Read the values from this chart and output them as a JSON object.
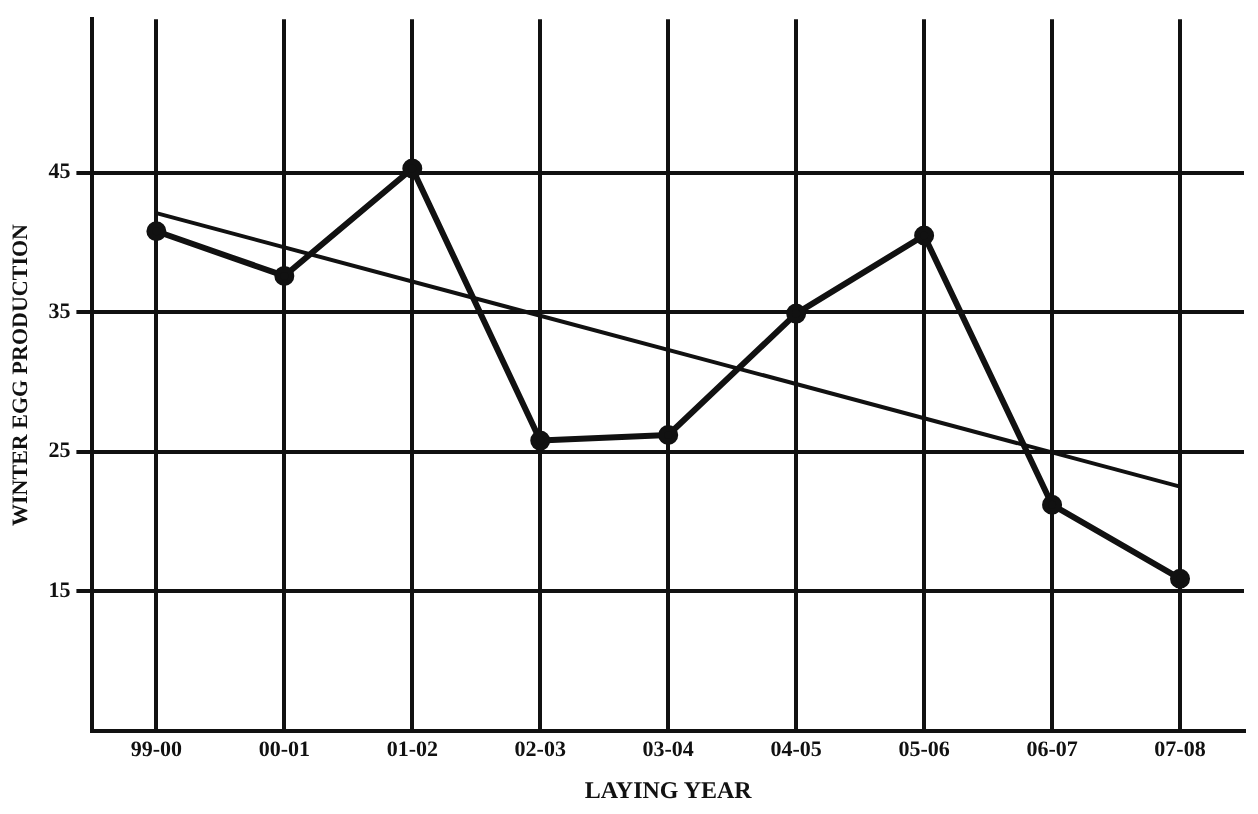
{
  "chart_data": {
    "type": "line",
    "xlabel": "LAYING YEAR",
    "ylabel": "WINTER EGG PRODUCTION",
    "categories": [
      "99-00",
      "00-01",
      "01-02",
      "02-03",
      "03-04",
      "04-05",
      "05-06",
      "06-07",
      "07-08"
    ],
    "series": [
      {
        "color": "#111111",
        "values": [
          40.8,
          37.6,
          45.3,
          25.8,
          26.2,
          34.9,
          40.5,
          21.2,
          15.9
        ],
        "marker": "circle"
      },
      {
        "type": "line",
        "color": "#111111",
        "x": [
          "99-00",
          "07-08"
        ],
        "values": [
          42.1,
          22.5
        ],
        "marker": "none"
      }
    ],
    "ylim": [
      5,
      56
    ],
    "yticks": [
      15,
      25,
      35,
      45
    ],
    "grid": true,
    "legend": false
  }
}
